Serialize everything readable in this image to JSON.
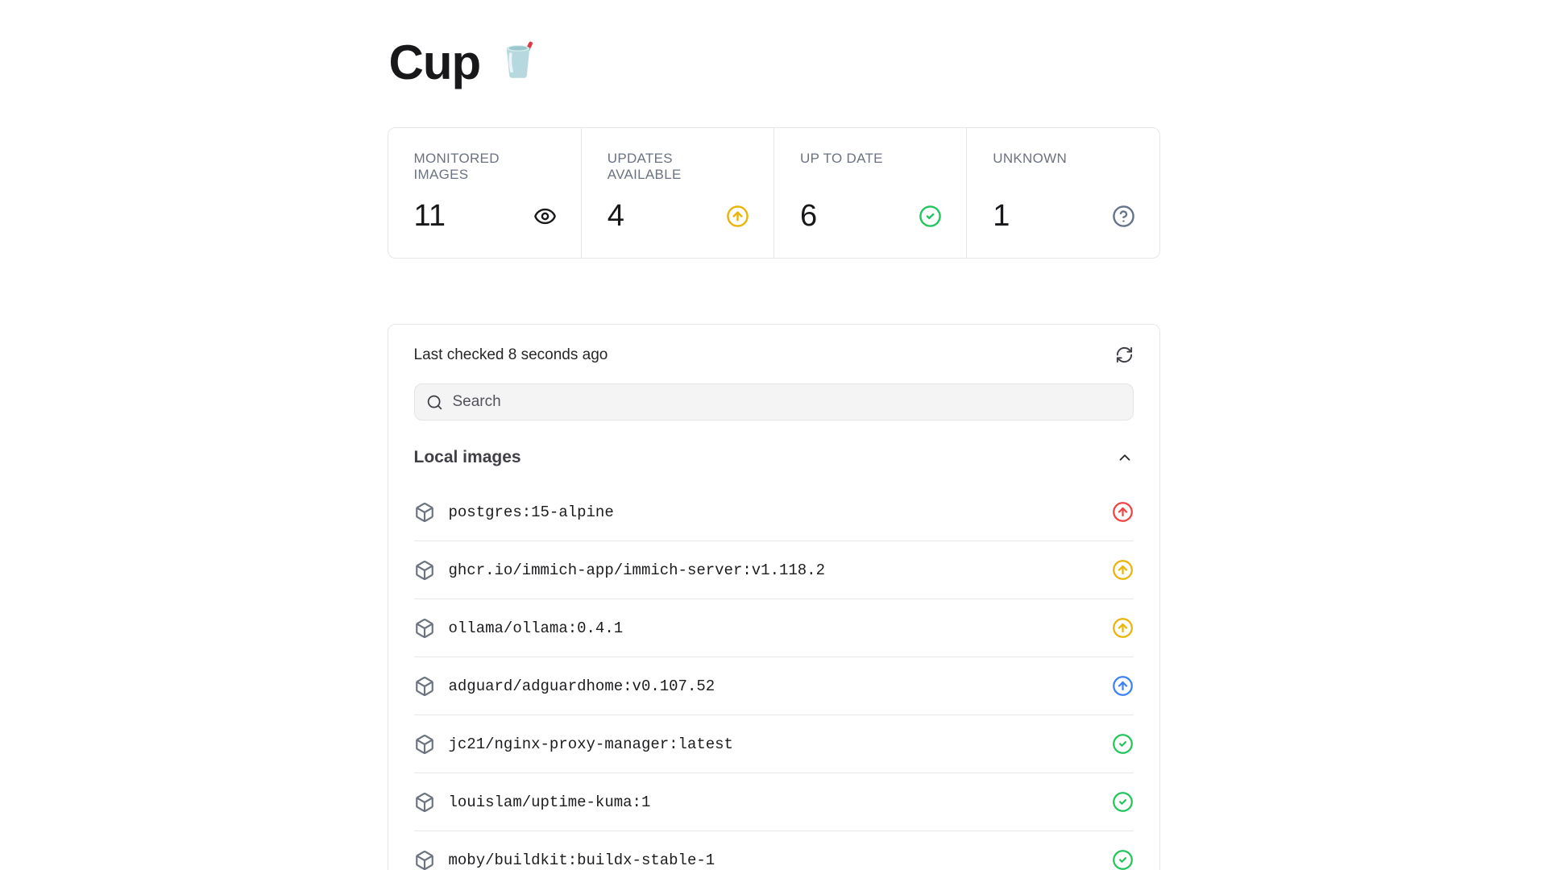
{
  "title": {
    "text": "Cup",
    "emoji": "cup-with-straw-emoji"
  },
  "stats": [
    {
      "label": "MONITORED IMAGES",
      "value": "11",
      "icon": "eye-icon",
      "color": "#18181b"
    },
    {
      "label": "UPDATES AVAILABLE",
      "value": "4",
      "icon": "circle-arrow-up-icon",
      "color": "#eab308"
    },
    {
      "label": "UP TO DATE",
      "value": "6",
      "icon": "circle-check-icon",
      "color": "#22c55e"
    },
    {
      "label": "UNKNOWN",
      "value": "1",
      "icon": "circle-question-icon",
      "color": "#64748b"
    }
  ],
  "panel": {
    "last_checked": "Last checked 8 seconds ago",
    "refresh_icon": "refresh-icon",
    "search": {
      "placeholder": "Search",
      "icon": "search-icon"
    },
    "section": {
      "title": "Local images",
      "collapse_icon": "chevron-up-icon"
    }
  },
  "list_item_icon": "box-icon",
  "images": [
    {
      "name": "postgres:15-alpine",
      "status_icon": "circle-arrow-up-icon",
      "status_color": "#ef4444"
    },
    {
      "name": "ghcr.io/immich-app/immich-server:v1.118.2",
      "status_icon": "circle-arrow-up-icon",
      "status_color": "#eab308"
    },
    {
      "name": "ollama/ollama:0.4.1",
      "status_icon": "circle-arrow-up-icon",
      "status_color": "#eab308"
    },
    {
      "name": "adguard/adguardhome:v0.107.52",
      "status_icon": "circle-arrow-up-icon",
      "status_color": "#3b82f6"
    },
    {
      "name": "jc21/nginx-proxy-manager:latest",
      "status_icon": "circle-check-icon",
      "status_color": "#22c55e"
    },
    {
      "name": "louislam/uptime-kuma:1",
      "status_icon": "circle-check-icon",
      "status_color": "#22c55e"
    },
    {
      "name": "moby/buildkit:buildx-stable-1",
      "status_icon": "circle-check-icon",
      "status_color": "#22c55e"
    }
  ],
  "colors": {
    "border": "#e5e7eb",
    "stat_label": "#6b7280",
    "box_icon": "#6b7280",
    "update_major": "#ef4444",
    "update_available": "#eab308",
    "update_patch": "#3b82f6",
    "up_to_date": "#22c55e",
    "unknown": "#64748b"
  }
}
